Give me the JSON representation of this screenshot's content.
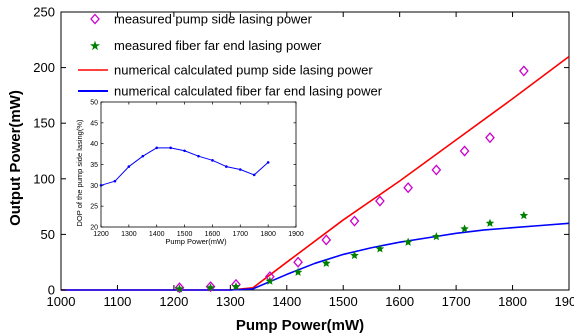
{
  "chart_data": [
    {
      "type": "line",
      "xlabel": "Pump Power(mW)",
      "ylabel": "Output Power(mW)",
      "xlim": [
        1000,
        1900
      ],
      "ylim": [
        0,
        250
      ],
      "xticks": [
        1000,
        1100,
        1200,
        1300,
        1400,
        1500,
        1600,
        1700,
        1800,
        1900
      ],
      "yticks": [
        0,
        50,
        100,
        150,
        200,
        250
      ],
      "grid": false,
      "legend_position": "top-left",
      "series": [
        {
          "name": "measured pump side lasing power",
          "kind": "scatter",
          "marker": "diamond",
          "color": "#cc00cc",
          "x": [
            1210,
            1265,
            1310,
            1370,
            1420,
            1470,
            1520,
            1565,
            1615,
            1665,
            1715,
            1760,
            1820
          ],
          "y": [
            2,
            3,
            5,
            12,
            25,
            45,
            62,
            80,
            92,
            108,
            125,
            137,
            197
          ]
        },
        {
          "name": "measured fiber far end lasing power",
          "kind": "scatter",
          "marker": "star",
          "color": "#008000",
          "x": [
            1210,
            1265,
            1310,
            1370,
            1420,
            1470,
            1520,
            1565,
            1615,
            1665,
            1715,
            1760,
            1820
          ],
          "y": [
            1,
            2,
            3,
            8,
            16,
            24,
            31,
            37,
            43,
            48,
            55,
            60,
            67
          ]
        },
        {
          "name": "numerical calculated pump side lasing power",
          "kind": "line",
          "color": "#ff0000",
          "x": [
            1000,
            1300,
            1340,
            1400,
            1500,
            1600,
            1700,
            1800,
            1900
          ],
          "y": [
            0,
            0,
            2,
            25,
            63,
            98,
            135,
            172,
            210
          ]
        },
        {
          "name": "numerical calculated fiber far end lasing power",
          "kind": "line",
          "color": "#0000ff",
          "x": [
            1000,
            1300,
            1340,
            1400,
            1450,
            1500,
            1550,
            1600,
            1650,
            1700,
            1750,
            1800,
            1850,
            1900
          ],
          "y": [
            0,
            0,
            1,
            14,
            24,
            32,
            38,
            43,
            47,
            51,
            54,
            56,
            58,
            60
          ]
        }
      ]
    },
    {
      "type": "line",
      "xlabel": "Pump Power(mW)",
      "ylabel": "DOP of the pump side lasing(%)",
      "xlim": [
        1200,
        1900
      ],
      "ylim": [
        20,
        50
      ],
      "xticks": [
        1200,
        1300,
        1400,
        1500,
        1600,
        1700,
        1800,
        1900
      ],
      "yticks": [
        20,
        25,
        30,
        35,
        40,
        45,
        50
      ],
      "grid": false,
      "series": [
        {
          "color": "#0000ff",
          "marker": "dot",
          "x": [
            1200,
            1250,
            1300,
            1350,
            1400,
            1450,
            1500,
            1550,
            1600,
            1650,
            1700,
            1750,
            1800
          ],
          "y": [
            30,
            31,
            34.5,
            37,
            39,
            39,
            38.3,
            37,
            36,
            34.5,
            33.8,
            32.5,
            35.5
          ]
        }
      ]
    }
  ]
}
